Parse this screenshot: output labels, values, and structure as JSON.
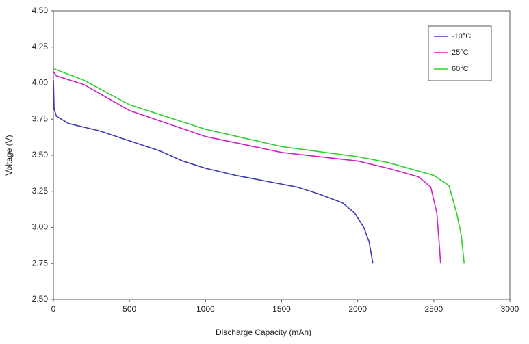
{
  "chart_data": {
    "type": "line",
    "xlabel": "Discharge Capacity (mAh)",
    "ylabel": "Voltage (V)",
    "xlim": [
      0,
      3000
    ],
    "xticks": [
      0,
      500,
      1000,
      1500,
      2000,
      2500,
      3000
    ],
    "ylim": [
      2.5,
      4.5
    ],
    "yticks": [
      {
        "value": 2.5,
        "label": "2.50"
      },
      {
        "value": 2.75,
        "label": "2.75"
      },
      {
        "value": 3,
        "label": "3.00"
      },
      {
        "value": 3.25,
        "label": "3.25"
      },
      {
        "value": 3.5,
        "label": "3.50"
      },
      {
        "value": 3.75,
        "label": "3.75"
      },
      {
        "value": 4,
        "label": "4.00"
      },
      {
        "value": 4.25,
        "label": "4.25"
      },
      {
        "value": 4.5,
        "label": "4.50"
      }
    ],
    "legend": "top-right",
    "series": [
      {
        "name": "-10°C",
        "color": "#3a3ab4",
        "x": [
          0,
          5,
          20,
          100,
          300,
          500,
          700,
          850,
          1000,
          1200,
          1400,
          1600,
          1750,
          1900,
          1980,
          2040,
          2075,
          2100
        ],
        "values": [
          4.02,
          3.82,
          3.77,
          3.72,
          3.67,
          3.6,
          3.53,
          3.46,
          3.41,
          3.36,
          3.32,
          3.28,
          3.23,
          3.17,
          3.1,
          3.0,
          2.9,
          2.75
        ]
      },
      {
        "name": "25°C",
        "color": "#d020c8",
        "x": [
          0,
          20,
          200,
          500,
          1000,
          1500,
          2000,
          2200,
          2400,
          2480,
          2520,
          2535,
          2545
        ],
        "values": [
          4.08,
          4.05,
          3.99,
          3.81,
          3.63,
          3.52,
          3.46,
          3.41,
          3.35,
          3.28,
          3.1,
          2.9,
          2.75
        ]
      },
      {
        "name": "60°C",
        "color": "#30d030",
        "x": [
          0,
          200,
          500,
          1000,
          1500,
          2000,
          2200,
          2500,
          2600,
          2650,
          2680,
          2700
        ],
        "values": [
          4.1,
          4.02,
          3.85,
          3.68,
          3.56,
          3.49,
          3.45,
          3.36,
          3.29,
          3.1,
          2.95,
          2.75
        ]
      }
    ]
  }
}
